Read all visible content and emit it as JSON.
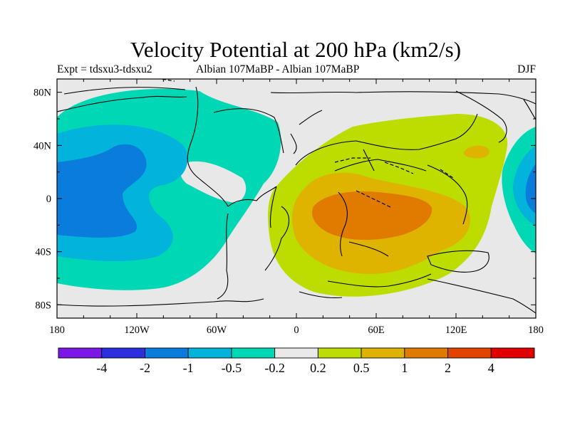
{
  "chart_data": {
    "type": "heatmap",
    "title": "Velocity Potential at 200 hPa (km2/s)",
    "subtitle_left": "Expt = tdsxu3-tdsxu2",
    "subtitle_center": "Albian   107MaBP - Albian   107MaBP",
    "subtitle_right": "DJF",
    "xlim": [
      -180,
      180
    ],
    "ylim": [
      -90,
      90
    ],
    "x_ticks": [
      {
        "value": -180,
        "label": "180"
      },
      {
        "value": -120,
        "label": "120W"
      },
      {
        "value": -60,
        "label": "60W"
      },
      {
        "value": 0,
        "label": "0"
      },
      {
        "value": 60,
        "label": "60E"
      },
      {
        "value": 120,
        "label": "120E"
      },
      {
        "value": 180,
        "label": "180"
      }
    ],
    "y_ticks": [
      {
        "value": 80,
        "label": "80N"
      },
      {
        "value": 40,
        "label": "40N"
      },
      {
        "value": 0,
        "label": "0"
      },
      {
        "value": -40,
        "label": "40S"
      },
      {
        "value": -80,
        "label": "80S"
      }
    ],
    "colorbar": {
      "colors": [
        "#7a17e6",
        "#2b2fe0",
        "#0a7ddc",
        "#02b3dc",
        "#00d7b4",
        "#e8e8e8",
        "#bddd00",
        "#dfb400",
        "#e07b00",
        "#e24400",
        "#e00000"
      ],
      "levels": [
        "-4",
        "-2",
        "-1",
        "-0.5",
        "-0.2",
        "0.2",
        "0.5",
        "1",
        "2",
        "4"
      ]
    }
  }
}
